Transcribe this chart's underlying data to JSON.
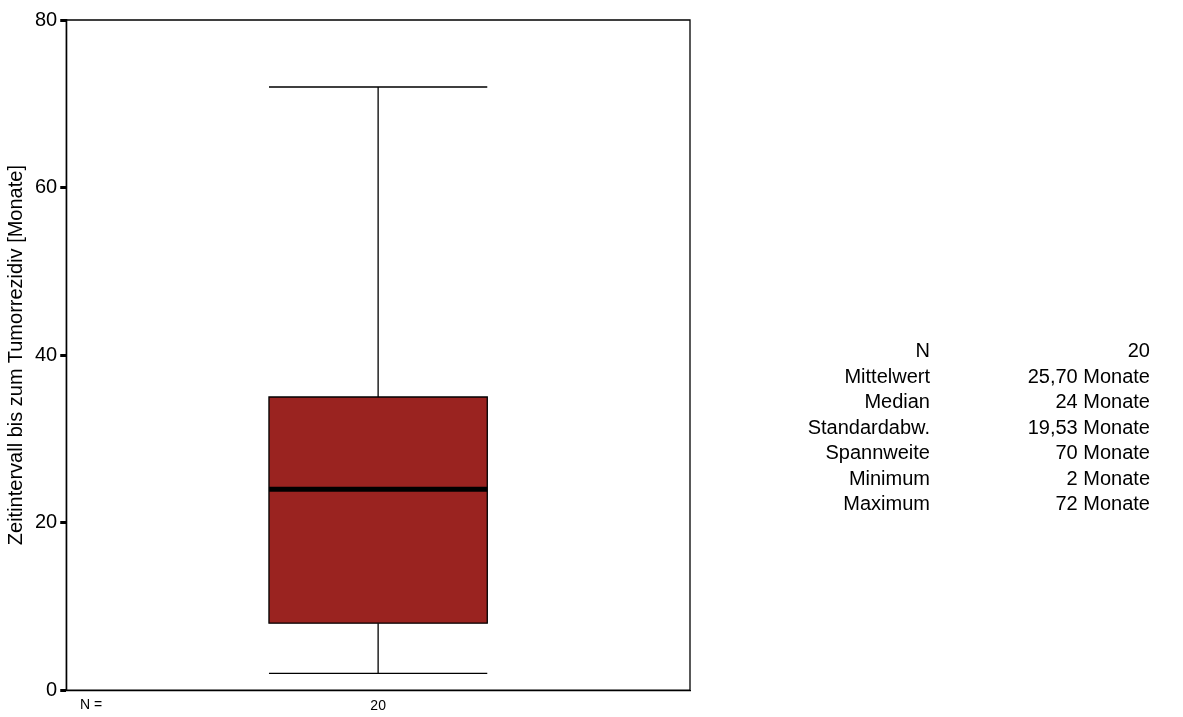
{
  "chart_data": {
    "type": "box",
    "ylabel": "Zeitintervall bis zum Tumorrezidiv [Monate]",
    "categories": [
      "20"
    ],
    "series": [
      {
        "color": "#9a2320",
        "boxes": [
          {
            "low": 2,
            "q1": 8,
            "median": 24,
            "q3": 35,
            "high": 72
          }
        ]
      }
    ],
    "ylim": [
      0,
      80
    ],
    "yticks": [
      0,
      20,
      40,
      60,
      80
    ],
    "grid": false,
    "legend": false,
    "annotations": [
      "N =",
      "N 20",
      "Mittelwert 25,70 Monate",
      "Median 24 Monate",
      "Standardabw. 19,53 Monate",
      "Spannweite 70 Monate",
      "Minimum 2 Monate",
      "Maximum 72 Monate"
    ]
  }
}
